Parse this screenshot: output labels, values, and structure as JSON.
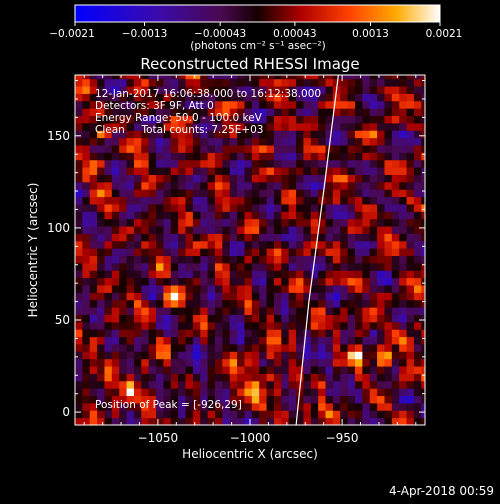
{
  "chart_data": {
    "type": "heatmap",
    "title": "Reconstructed RHESSI Image",
    "xlabel": "Heliocentric X (arcsec)",
    "ylabel": "Heliocentric Y (arcsec)",
    "xlim": [
      -1095,
      -905
    ],
    "ylim": [
      -7,
      183
    ],
    "x_ticks": [
      -1050,
      -1000,
      -950
    ],
    "x_tick_labels": [
      "−1050",
      "−1000",
      "−950"
    ],
    "y_ticks": [
      0,
      50,
      100,
      150
    ],
    "y_tick_labels": [
      "0",
      "50",
      "100",
      "150"
    ],
    "colorbar": {
      "range": [
        -0.0021,
        0.0021
      ],
      "ticks": [
        -0.0021,
        -0.0013,
        -0.00043,
        0.00043,
        0.0013,
        0.0021
      ],
      "tick_labels": [
        "−0.0021",
        "−0.0013",
        "−0.00043",
        "0.00043",
        "0.0013",
        "0.0021"
      ],
      "unit_label": "(photons cm⁻² s⁻¹ asec⁻²)",
      "colors": [
        "#0000ff",
        "#5a0a7a",
        "#1a0000",
        "#e81a00",
        "#ff9900",
        "#ffffff"
      ]
    },
    "peak": {
      "x": -926,
      "y": 29
    },
    "limb_curve": [
      [
        -975,
        -7
      ],
      [
        -968,
        60
      ],
      [
        -960,
        120
      ],
      [
        -952,
        183
      ]
    ],
    "annotations": {
      "time": "12-Jan-2017 16:06:38.000 to 16:12:38.000",
      "detectors": "Detectors: 3F 9F, Att 0",
      "energy": "Energy Range: 50.0 - 100.0 keV",
      "clean": "Clean     Total counts: 7.25E+03",
      "peak_text": "Position of Peak = [-926,29]"
    },
    "bright_spots": [
      {
        "x": -926,
        "y": 29,
        "v": 0.0021
      },
      {
        "x": -943,
        "y": 31,
        "v": 0.0016
      },
      {
        "x": -940,
        "y": 44,
        "v": 0.0015
      },
      {
        "x": -1064,
        "y": 13,
        "v": 0.0016
      },
      {
        "x": -1080,
        "y": 150,
        "v": 0.0013
      },
      {
        "x": -1060,
        "y": 60,
        "v": 0.0012
      },
      {
        "x": -1040,
        "y": 62,
        "v": 0.0013
      },
      {
        "x": -990,
        "y": 20,
        "v": 0.0012
      },
      {
        "x": -1000,
        "y": 12,
        "v": 0.0011
      },
      {
        "x": -1030,
        "y": 185,
        "v": 0.0011
      },
      {
        "x": -925,
        "y": 100,
        "v": 0.0011
      },
      {
        "x": -960,
        "y": 15,
        "v": 0.0011
      },
      {
        "x": -910,
        "y": 60,
        "v": 0.001
      }
    ]
  },
  "footer": {
    "timestamp": "4-Apr-2018 00:59"
  }
}
